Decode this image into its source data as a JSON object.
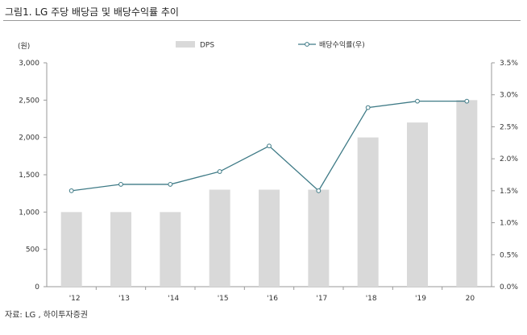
{
  "header": {
    "title": "그림1.  LG 주당 배당금 및 배당수익률 추이"
  },
  "footer": {
    "source": "자료:  LG , 하이투자증권"
  },
  "colors": {
    "bar": "#d9d9d9",
    "line": "#3e7a86",
    "marker_fill": "#ffffff",
    "axis": "#999999"
  },
  "chart_data": {
    "type": "bar",
    "categories": [
      "'12",
      "'13",
      "'14",
      "'15",
      "'16",
      "'17",
      "'18",
      "'19",
      "20"
    ],
    "series": [
      {
        "name": "DPS",
        "type": "bar",
        "axis": "left",
        "values": [
          1000,
          1000,
          1000,
          1300,
          1300,
          1300,
          2000,
          2200,
          2500
        ]
      },
      {
        "name": "배당수익률(우)",
        "type": "line",
        "axis": "right",
        "values": [
          1.5,
          1.6,
          1.6,
          1.8,
          2.2,
          1.5,
          2.8,
          2.9,
          2.9
        ]
      }
    ],
    "y_left": {
      "unit_label": "(원)",
      "range": [
        0,
        3000
      ],
      "ticks": [
        "0",
        "500",
        "1,000",
        "1,500",
        "2,000",
        "2,500",
        "3,000"
      ]
    },
    "y_right": {
      "range": [
        0,
        3.5
      ],
      "ticks": [
        "0.0%",
        "0.5%",
        "1.0%",
        "1.5%",
        "2.0%",
        "2.5%",
        "3.0%",
        "3.5%"
      ]
    },
    "legend_position": "top",
    "grid": false
  }
}
